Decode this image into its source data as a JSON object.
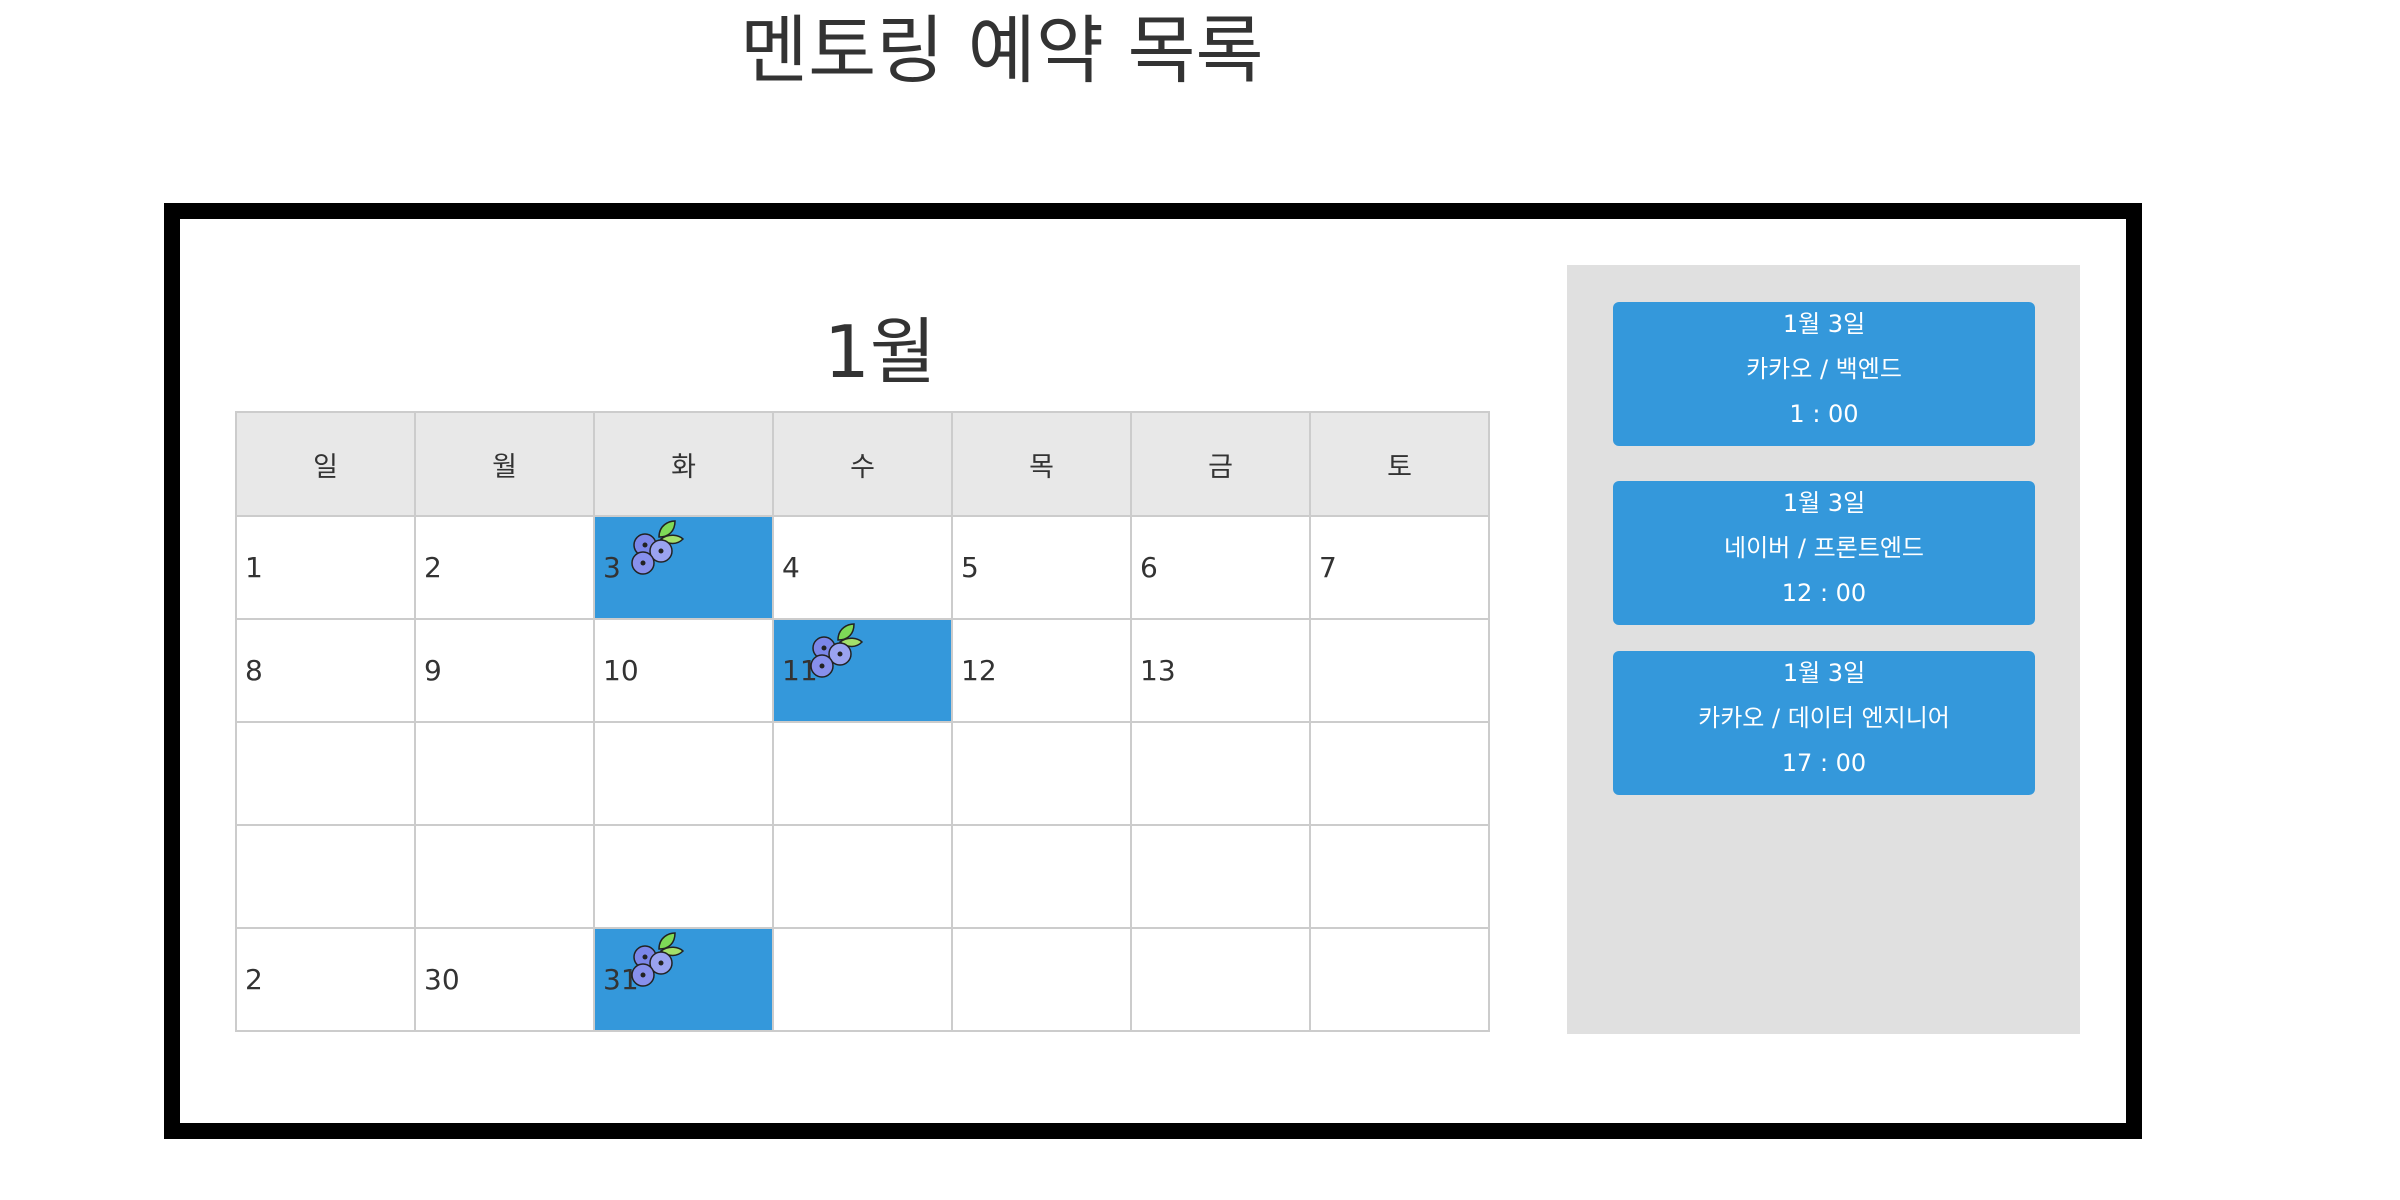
{
  "page_title": "멘토링 예약 목록",
  "calendar": {
    "month_label": "1월",
    "weekdays": [
      "일",
      "월",
      "화",
      "수",
      "목",
      "금",
      "토"
    ],
    "weeks": [
      [
        {
          "day": "1"
        },
        {
          "day": "2"
        },
        {
          "day": "3",
          "booked": true
        },
        {
          "day": "4"
        },
        {
          "day": "5"
        },
        {
          "day": "6"
        },
        {
          "day": "7"
        }
      ],
      [
        {
          "day": "8"
        },
        {
          "day": "9"
        },
        {
          "day": "10"
        },
        {
          "day": "11",
          "booked": true
        },
        {
          "day": "12"
        },
        {
          "day": "13"
        },
        {
          "day": ""
        }
      ],
      [
        {
          "day": ""
        },
        {
          "day": ""
        },
        {
          "day": ""
        },
        {
          "day": ""
        },
        {
          "day": ""
        },
        {
          "day": ""
        },
        {
          "day": ""
        }
      ],
      [
        {
          "day": ""
        },
        {
          "day": ""
        },
        {
          "day": ""
        },
        {
          "day": ""
        },
        {
          "day": ""
        },
        {
          "day": ""
        },
        {
          "day": ""
        }
      ],
      [
        {
          "day": "2"
        },
        {
          "day": "30"
        },
        {
          "day": "31",
          "booked": true
        },
        {
          "day": ""
        },
        {
          "day": ""
        },
        {
          "day": ""
        },
        {
          "day": ""
        }
      ]
    ],
    "booked_icon": "blueberry-icon"
  },
  "reservations": [
    {
      "date": "1월 3일",
      "detail": "카카오 / 백엔드",
      "time": "1 : 00"
    },
    {
      "date": "1월 3일",
      "detail": "네이버 / 프론트엔드",
      "time": "12 : 00"
    },
    {
      "date": "1월 3일",
      "detail": "카카오 / 데이터 엔지니어",
      "time": "17 : 00"
    }
  ],
  "colors": {
    "accent": "#3498db",
    "sidebar_bg": "#e0e0e0",
    "header_bg": "#e8e8e8",
    "frame_border": "#000000",
    "text": "#333333"
  }
}
